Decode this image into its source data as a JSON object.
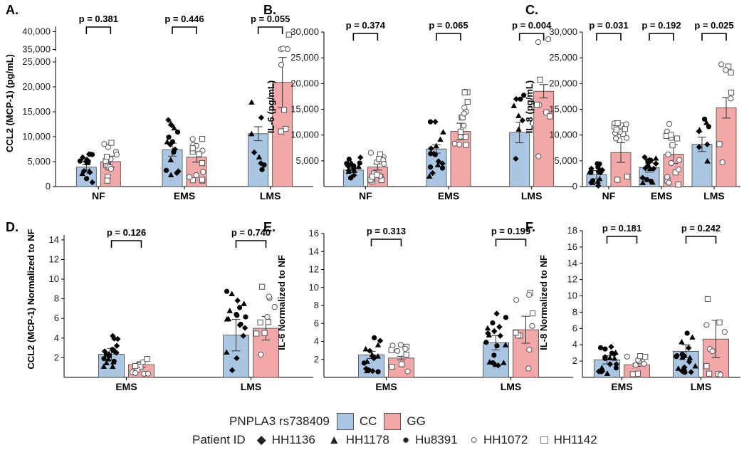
{
  "colors": {
    "cc": "#aac6e2",
    "gg": "#f2a7a9"
  },
  "legend": {
    "genotype_title": "PNPLA3 rs738409",
    "genotypes": [
      "CC",
      "GG"
    ],
    "patient_title": "Patient ID",
    "patients": [
      {
        "id": "HH1136",
        "icon": "diamond-filled"
      },
      {
        "id": "HH1178",
        "icon": "triangle-filled"
      },
      {
        "id": "Hu8391",
        "icon": "circle-filled"
      },
      {
        "id": "HH1072",
        "icon": "circle-open"
      },
      {
        "id": "HH1142",
        "icon": "square-open"
      }
    ]
  },
  "chart_data": [
    {
      "panel": "A.",
      "type": "bar",
      "ylabel": "CCL2 (MCP-1) (pg/mL)",
      "categories": [
        "NF",
        "EMS",
        "LMS"
      ],
      "series": [
        {
          "name": "CC",
          "values": [
            3900,
            7400,
            10600
          ],
          "se": [
            600,
            1300,
            1400
          ]
        },
        {
          "name": "GG",
          "values": [
            5000,
            5900,
            20900
          ],
          "se": [
            1100,
            1000,
            5000
          ]
        }
      ],
      "yticks": [
        "0",
        "5,000",
        "10,000",
        "15,000",
        "20,000",
        "25,000",
        "35,000",
        "40,000"
      ],
      "axis_break": {
        "lower": [
          0,
          26000
        ],
        "upper": [
          34500,
          41500
        ]
      },
      "pvalues": [
        "p = 0.381",
        "p = 0.446",
        "p = 0.055"
      ]
    },
    {
      "panel": "B.",
      "type": "bar",
      "ylabel": "IL-6 (pg/mL)",
      "categories": [
        "NF",
        "EMS",
        "LMS"
      ],
      "series": [
        {
          "name": "CC",
          "values": [
            3200,
            7300,
            10500
          ],
          "se": [
            500,
            800,
            2000
          ]
        },
        {
          "name": "GG",
          "values": [
            3800,
            10700,
            18500
          ],
          "se": [
            600,
            1600,
            1300
          ]
        }
      ],
      "yticks": [
        "5,000",
        "10,000",
        "15,000",
        "20,000",
        "25,000",
        "30,000"
      ],
      "ylim": [
        0,
        30000
      ],
      "pvalues": [
        "p = 0.374",
        "p = 0.065",
        "p = 0.004"
      ]
    },
    {
      "panel": "C.",
      "type": "bar",
      "ylabel": "IL-8 (pg/mL)",
      "categories": [
        "NF",
        "EMS",
        "LMS"
      ],
      "series": [
        {
          "name": "CC",
          "values": [
            2300,
            3700,
            8200
          ],
          "se": [
            800,
            900,
            1400
          ]
        },
        {
          "name": "GG",
          "values": [
            6600,
            6300,
            15300
          ],
          "se": [
            1900,
            1800,
            2000
          ]
        }
      ],
      "yticks": [
        "0",
        "5,000",
        "10,000",
        "15,000",
        "20,000",
        "25,000",
        "30,000"
      ],
      "ylim": [
        0,
        30000
      ],
      "pvalues": [
        "p = 0.031",
        "p = 0.192",
        "p = 0.025"
      ]
    },
    {
      "panel": "D.",
      "type": "bar",
      "ylabel": "CCL2 (MCP-1) Normalized to NF",
      "categories": [
        "EMS",
        "LMS"
      ],
      "series": [
        {
          "name": "CC",
          "values": [
            2.35,
            4.3
          ],
          "se": [
            0.6,
            1.6
          ]
        },
        {
          "name": "GG",
          "values": [
            1.3,
            5.0
          ],
          "se": [
            0.3,
            1.2
          ]
        }
      ],
      "yticks": [
        "2",
        "4",
        "6",
        "8",
        "10",
        "12",
        "14"
      ],
      "ylim": [
        0,
        14.5
      ],
      "pvalues": [
        "p = 0.126",
        "p = 0.740"
      ]
    },
    {
      "panel": "E.",
      "type": "bar",
      "ylabel": "IL-6 Normalized to NF",
      "categories": [
        "EMS",
        "LMS"
      ],
      "series": [
        {
          "name": "CC",
          "values": [
            2.5,
            3.85
          ],
          "se": [
            0.4,
            0.8
          ]
        },
        {
          "name": "GG",
          "values": [
            2.15,
            5.3
          ],
          "se": [
            0.2,
            1.5
          ]
        }
      ],
      "yticks": [
        "2",
        "4",
        "6",
        "8",
        "10",
        "12",
        "14",
        "16"
      ],
      "ylim": [
        0,
        16
      ],
      "pvalues": [
        "p = 0.313",
        "p = 0.199"
      ]
    },
    {
      "panel": "F.",
      "type": "bar",
      "ylabel": "IL-8 Normalized to NF",
      "categories": [
        "EMS",
        "LMS"
      ],
      "series": [
        {
          "name": "CC",
          "values": [
            2.15,
            3.2
          ],
          "se": [
            0.5,
            0.8
          ]
        },
        {
          "name": "GG",
          "values": [
            1.55,
            4.7
          ],
          "se": [
            0.2,
            2.3
          ]
        }
      ],
      "yticks": [
        "2",
        "4",
        "6",
        "8",
        "10",
        "12",
        "14",
        "16",
        "18"
      ],
      "ylim": [
        0,
        18
      ],
      "pvalues": [
        "p = 0.181",
        "p = 0.242"
      ]
    }
  ]
}
